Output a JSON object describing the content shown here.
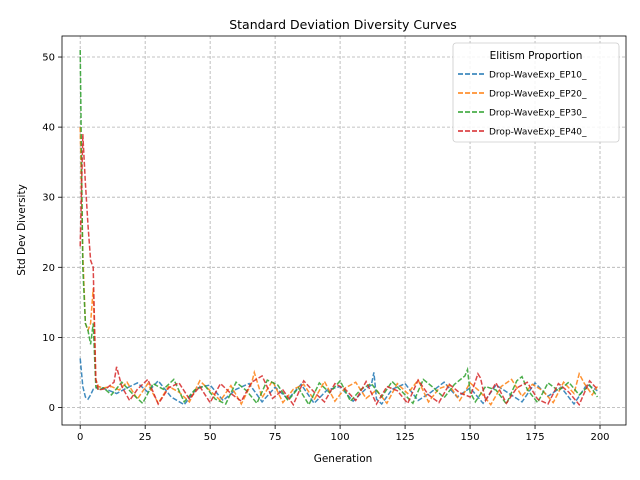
{
  "chart_data": {
    "type": "line",
    "title": "Standard Deviation Diversity Curves",
    "xlabel": "Generation",
    "ylabel": "Std Dev Diversity",
    "xlim": [
      -7,
      210
    ],
    "ylim": [
      -2.5,
      53
    ],
    "xticks": [
      0,
      25,
      50,
      75,
      100,
      125,
      150,
      175,
      200
    ],
    "yticks": [
      0,
      10,
      20,
      30,
      40,
      50
    ],
    "grid": true,
    "legend": {
      "title": "Elitism Proportion",
      "placement": "top-right"
    },
    "series": [
      {
        "name": "Drop-WaveExp_EP10_",
        "color": "#1f77b4",
        "x": [
          0,
          1,
          2,
          3,
          4,
          5,
          7,
          10,
          14,
          18,
          22,
          26,
          30,
          35,
          40,
          45,
          50,
          55,
          60,
          65,
          70,
          75,
          80,
          85,
          90,
          95,
          100,
          105,
          110,
          112,
          113,
          114,
          116,
          120,
          125,
          130,
          135,
          140,
          145,
          150,
          155,
          160,
          165,
          170,
          175,
          180,
          185,
          190,
          195,
          199
        ],
        "y": [
          7,
          3,
          1.5,
          1.2,
          1.8,
          2.6,
          3.0,
          2.6,
          2.0,
          2.8,
          3.5,
          2.2,
          3.8,
          1.5,
          0.4,
          2.8,
          3.2,
          1.0,
          2.6,
          3.4,
          0.8,
          2.9,
          1.2,
          3.3,
          0.6,
          2.5,
          3.0,
          0.9,
          2.7,
          3.2,
          5.0,
          1.2,
          0.5,
          2.6,
          3.4,
          1.0,
          2.2,
          3.6,
          1.5,
          2.8,
          0.6,
          3.2,
          2.0,
          0.8,
          3.5,
          1.6,
          2.9,
          0.5,
          3.3,
          2.4
        ]
      },
      {
        "name": "Drop-WaveExp_EP20_",
        "color": "#ff7f0e",
        "x": [
          0,
          1,
          2,
          3,
          4,
          5,
          6,
          7,
          9,
          12,
          15,
          18,
          22,
          26,
          30,
          34,
          38,
          42,
          46,
          50,
          54,
          58,
          62,
          66,
          67,
          70,
          74,
          78,
          82,
          86,
          90,
          94,
          98,
          102,
          106,
          110,
          114,
          118,
          122,
          126,
          130,
          134,
          138,
          142,
          146,
          150,
          154,
          158,
          162,
          166,
          170,
          174,
          178,
          182,
          186,
          190,
          192,
          194,
          197,
          199
        ],
        "y": [
          40,
          22,
          12,
          11,
          12,
          17,
          4,
          3,
          2.8,
          3.0,
          2.5,
          3.6,
          1.2,
          3.4,
          0.6,
          3.0,
          2.2,
          0.8,
          3.8,
          2.4,
          1.0,
          3.1,
          0.5,
          3.5,
          5.0,
          1.4,
          3.8,
          0.7,
          2.6,
          3.3,
          1.1,
          3.7,
          0.9,
          2.8,
          3.6,
          1.3,
          2.5,
          0.6,
          3.4,
          2.0,
          3.9,
          0.8,
          2.7,
          3.2,
          1.0,
          3.5,
          2.2,
          0.4,
          3.0,
          4.0,
          1.6,
          3.3,
          2.4,
          0.7,
          3.6,
          2.0,
          4.8,
          3.4,
          1.8,
          3.0
        ]
      },
      {
        "name": "Drop-WaveExp_EP30_",
        "color": "#2ca02c",
        "x": [
          0,
          1,
          2,
          3,
          4,
          5,
          6,
          7,
          9,
          12,
          16,
          20,
          24,
          28,
          32,
          36,
          40,
          44,
          48,
          52,
          56,
          60,
          64,
          68,
          72,
          76,
          80,
          84,
          88,
          92,
          96,
          100,
          104,
          108,
          112,
          116,
          120,
          124,
          128,
          132,
          136,
          140,
          144,
          148,
          149,
          150,
          152,
          156,
          160,
          164,
          168,
          170,
          172,
          176,
          180,
          184,
          188,
          192,
          196,
          199
        ],
        "y": [
          51,
          20,
          12,
          11,
          9,
          12,
          3,
          2.5,
          2.8,
          1.8,
          3.6,
          2.0,
          0.6,
          3.4,
          2.6,
          4.0,
          0.8,
          2.5,
          3.1,
          1.2,
          0.5,
          3.6,
          2.4,
          0.6,
          3.9,
          3.2,
          1.0,
          2.8,
          0.4,
          3.5,
          2.1,
          3.8,
          0.9,
          2.6,
          3.4,
          1.5,
          3.7,
          2.2,
          0.6,
          4.0,
          2.8,
          1.4,
          3.3,
          4.5,
          5.4,
          2.2,
          0.8,
          3.0,
          2.5,
          0.5,
          3.8,
          4.4,
          2.6,
          0.7,
          3.5,
          2.4,
          3.6,
          1.8,
          3.2,
          1.5
        ]
      },
      {
        "name": "Drop-WaveExp_EP40_",
        "color": "#d62728",
        "x": [
          0,
          1,
          2,
          3,
          4,
          5,
          6,
          7,
          10,
          13,
          14,
          16,
          19,
          22,
          26,
          30,
          34,
          38,
          42,
          46,
          50,
          54,
          58,
          62,
          66,
          70,
          74,
          78,
          82,
          86,
          90,
          94,
          98,
          102,
          106,
          110,
          114,
          118,
          122,
          126,
          130,
          134,
          138,
          142,
          146,
          150,
          153,
          154,
          156,
          160,
          164,
          168,
          172,
          176,
          180,
          184,
          188,
          192,
          196,
          199
        ],
        "y": [
          23,
          39,
          32,
          26,
          21,
          20,
          4,
          2.5,
          2.7,
          3.6,
          5.8,
          3.0,
          1.0,
          2.6,
          4.0,
          0.5,
          2.8,
          3.5,
          1.2,
          3.0,
          0.7,
          3.4,
          2.0,
          0.9,
          3.6,
          4.5,
          1.3,
          2.5,
          0.4,
          3.8,
          2.2,
          0.8,
          3.4,
          2.6,
          1.0,
          3.7,
          0.5,
          3.0,
          2.4,
          0.6,
          3.9,
          1.8,
          0.7,
          3.3,
          2.1,
          1.5,
          4.8,
          4.2,
          1.0,
          3.5,
          0.6,
          2.8,
          3.6,
          1.2,
          0.5,
          3.4,
          2.2,
          0.4,
          3.8,
          2.6
        ]
      }
    ]
  }
}
